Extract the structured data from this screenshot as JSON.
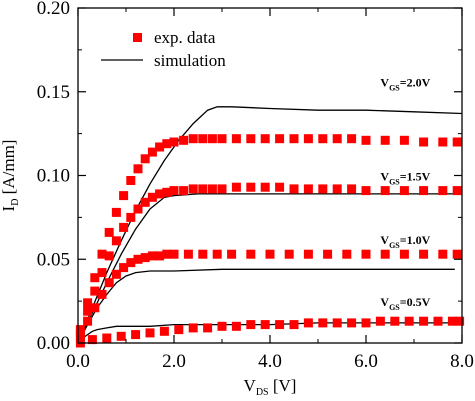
{
  "chart_data": {
    "type": "scatter",
    "xlabel": {
      "main": "V",
      "sub": "DS",
      "unit": " [V]"
    },
    "ylabel": {
      "main": "I",
      "sub": "D",
      "unit": " [A/mm]"
    },
    "xlim": [
      0,
      8
    ],
    "ylim": [
      0,
      0.2
    ],
    "x_ticks": [
      "0.0",
      "2.0",
      "4.0",
      "6.0",
      "8.0"
    ],
    "y_ticks": [
      "0.00",
      "0.05",
      "0.10",
      "0.15",
      "0.20"
    ],
    "grid": false,
    "legend": {
      "placement": "top-left",
      "entries": [
        {
          "label": "exp. data",
          "marker": "square",
          "color": "#ff0000"
        },
        {
          "label": "simulation",
          "marker": "line",
          "color": "#000000"
        }
      ]
    },
    "series": [
      {
        "name": "exp. data",
        "vgs": "2.0V",
        "color": "#ff0000",
        "x": [
          0.05,
          0.2,
          0.35,
          0.5,
          0.65,
          0.8,
          0.95,
          1.1,
          1.25,
          1.4,
          1.55,
          1.7,
          1.85,
          2.0,
          2.2,
          2.4,
          2.6,
          2.8,
          3.0,
          3.3,
          3.6,
          3.9,
          4.2,
          4.5,
          4.8,
          5.1,
          5.4,
          5.7,
          6.0,
          6.4,
          6.8,
          7.2,
          7.6,
          7.9
        ],
        "y": [
          0.008,
          0.024,
          0.039,
          0.053,
          0.066,
          0.078,
          0.088,
          0.097,
          0.104,
          0.11,
          0.114,
          0.117,
          0.119,
          0.12,
          0.121,
          0.122,
          0.122,
          0.122,
          0.122,
          0.122,
          0.122,
          0.122,
          0.122,
          0.122,
          0.122,
          0.122,
          0.122,
          0.122,
          0.121,
          0.121,
          0.121,
          0.12,
          0.12,
          0.12
        ]
      },
      {
        "name": "exp. data",
        "vgs": "1.5V",
        "color": "#ff0000",
        "x": [
          0.05,
          0.2,
          0.35,
          0.5,
          0.65,
          0.8,
          0.95,
          1.1,
          1.25,
          1.4,
          1.55,
          1.7,
          1.85,
          2.0,
          2.2,
          2.4,
          2.6,
          2.8,
          3.0,
          3.3,
          3.6,
          3.9,
          4.2,
          4.5,
          4.8,
          5.1,
          5.4,
          5.7,
          6.0,
          6.4,
          6.8,
          7.2,
          7.6,
          7.9
        ],
        "y": [
          0.006,
          0.019,
          0.031,
          0.042,
          0.052,
          0.061,
          0.069,
          0.075,
          0.08,
          0.084,
          0.087,
          0.089,
          0.09,
          0.091,
          0.091,
          0.092,
          0.092,
          0.092,
          0.092,
          0.093,
          0.093,
          0.093,
          0.093,
          0.092,
          0.092,
          0.092,
          0.092,
          0.092,
          0.091,
          0.091,
          0.091,
          0.091,
          0.091,
          0.091
        ]
      },
      {
        "name": "exp. data",
        "vgs": "1.0V",
        "color": "#ff0000",
        "x": [
          0.05,
          0.2,
          0.35,
          0.5,
          0.65,
          0.8,
          0.95,
          1.1,
          1.25,
          1.4,
          1.55,
          1.7,
          1.85,
          2.0,
          2.3,
          2.6,
          2.9,
          3.2,
          3.6,
          4.0,
          4.4,
          4.8,
          5.2,
          5.6,
          6.0,
          6.4,
          6.8,
          7.2,
          7.6,
          7.9
        ],
        "y": [
          0.004,
          0.013,
          0.021,
          0.029,
          0.036,
          0.041,
          0.045,
          0.048,
          0.05,
          0.051,
          0.052,
          0.052,
          0.053,
          0.053,
          0.053,
          0.053,
          0.053,
          0.053,
          0.053,
          0.053,
          0.053,
          0.053,
          0.053,
          0.053,
          0.053,
          0.053,
          0.053,
          0.053,
          0.053,
          0.053
        ]
      },
      {
        "name": "exp. data",
        "vgs": "0.5V",
        "color": "#ff0000",
        "x": [
          0.05,
          0.3,
          0.6,
          0.9,
          1.2,
          1.5,
          1.8,
          2.1,
          2.4,
          2.7,
          3.0,
          3.3,
          3.6,
          3.9,
          4.2,
          4.5,
          4.8,
          5.1,
          5.4,
          5.7,
          6.0,
          6.3,
          6.6,
          6.9,
          7.2,
          7.5,
          7.8,
          7.95
        ],
        "y": [
          0.0,
          0.002,
          0.003,
          0.004,
          0.005,
          0.006,
          0.007,
          0.008,
          0.009,
          0.009,
          0.01,
          0.01,
          0.011,
          0.011,
          0.011,
          0.011,
          0.012,
          0.012,
          0.012,
          0.012,
          0.012,
          0.013,
          0.013,
          0.013,
          0.013,
          0.013,
          0.013,
          0.013
        ]
      },
      {
        "name": "simulation",
        "vgs": "2.0V",
        "color": "#000000",
        "line": true,
        "x": [
          0,
          0.3,
          0.6,
          0.9,
          1.2,
          1.5,
          1.8,
          2.1,
          2.4,
          2.7,
          2.9,
          3.2,
          4.0,
          5.0,
          6.0,
          7.0,
          8.0
        ],
        "y": [
          0.0,
          0.021,
          0.042,
          0.061,
          0.079,
          0.095,
          0.109,
          0.121,
          0.131,
          0.139,
          0.141,
          0.141,
          0.14,
          0.139,
          0.139,
          0.138,
          0.137
        ]
      },
      {
        "name": "simulation",
        "vgs": "1.5V",
        "color": "#000000",
        "line": true,
        "x": [
          0,
          0.3,
          0.6,
          0.9,
          1.2,
          1.5,
          1.8,
          2.0,
          2.5,
          3.0,
          4.0,
          5.0,
          6.0,
          7.0,
          7.85
        ],
        "y": [
          0.0,
          0.018,
          0.036,
          0.053,
          0.068,
          0.08,
          0.087,
          0.088,
          0.089,
          0.089,
          0.089,
          0.089,
          0.089,
          0.089,
          0.089
        ]
      },
      {
        "name": "simulation",
        "vgs": "1.0V",
        "color": "#000000",
        "line": true,
        "x": [
          0,
          0.2,
          0.4,
          0.6,
          0.8,
          1.0,
          1.2,
          1.5,
          2.0,
          3.0,
          4.0,
          5.0,
          6.0,
          7.0,
          7.85
        ],
        "y": [
          0.0,
          0.011,
          0.021,
          0.029,
          0.036,
          0.04,
          0.042,
          0.043,
          0.043,
          0.044,
          0.044,
          0.044,
          0.044,
          0.044,
          0.044
        ]
      },
      {
        "name": "simulation",
        "vgs": "0.5V",
        "color": "#000000",
        "line": true,
        "x": [
          0,
          0.1,
          0.2,
          0.3,
          0.4,
          0.6,
          0.8,
          1.0,
          1.5,
          2.0,
          3.0,
          4.0,
          5.0,
          6.0,
          7.0,
          7.85
        ],
        "y": [
          0.0,
          0.003,
          0.005,
          0.007,
          0.008,
          0.009,
          0.01,
          0.01,
          0.01,
          0.011,
          0.011,
          0.011,
          0.012,
          0.012,
          0.012,
          0.012
        ]
      }
    ],
    "annotations": [
      {
        "main": "V",
        "sub": "GS",
        "text": "=2.0V",
        "x": 6.3,
        "y": 0.153
      },
      {
        "main": "V",
        "sub": "GS",
        "text": "=1.5V",
        "x": 6.3,
        "y": 0.097
      },
      {
        "main": "V",
        "sub": "GS",
        "text": "=1.0V",
        "x": 6.3,
        "y": 0.059
      },
      {
        "main": "V",
        "sub": "GS",
        "text": "=0.5V",
        "x": 6.3,
        "y": 0.022
      }
    ]
  }
}
